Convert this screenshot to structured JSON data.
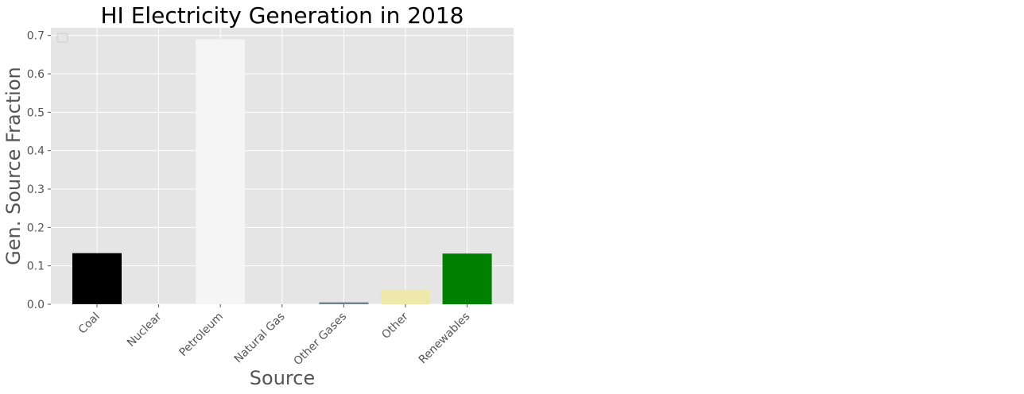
{
  "chart_data": {
    "type": "bar",
    "title": "HI Electricity Generation in 2018",
    "xlabel": "Source",
    "ylabel": "Gen. Source Fraction",
    "categories": [
      "Coal",
      "Nuclear",
      "Petroleum",
      "Natural Gas",
      "Other Gases",
      "Other",
      "Renewables"
    ],
    "values": [
      0.133,
      0.0,
      0.69,
      0.0,
      0.005,
      0.038,
      0.132
    ],
    "bar_colors": [
      "#000000",
      "#7f7f7f",
      "#f5f5f5",
      "#add8e6",
      "#708090",
      "#eee8aa",
      "#008000"
    ],
    "ylim": [
      0,
      0.72
    ],
    "yticks": [
      0.0,
      0.1,
      0.2,
      0.3,
      0.4,
      0.5,
      0.6,
      0.7
    ],
    "ytick_labels": [
      "0.0",
      "0.1",
      "0.2",
      "0.3",
      "0.4",
      "0.5",
      "0.6",
      "0.7"
    ],
    "grid": true,
    "legend": {
      "placement": "top-left",
      "entries": []
    },
    "style": {
      "plot_background": "#e5e5e5",
      "grid_color": "#ffffff"
    }
  }
}
